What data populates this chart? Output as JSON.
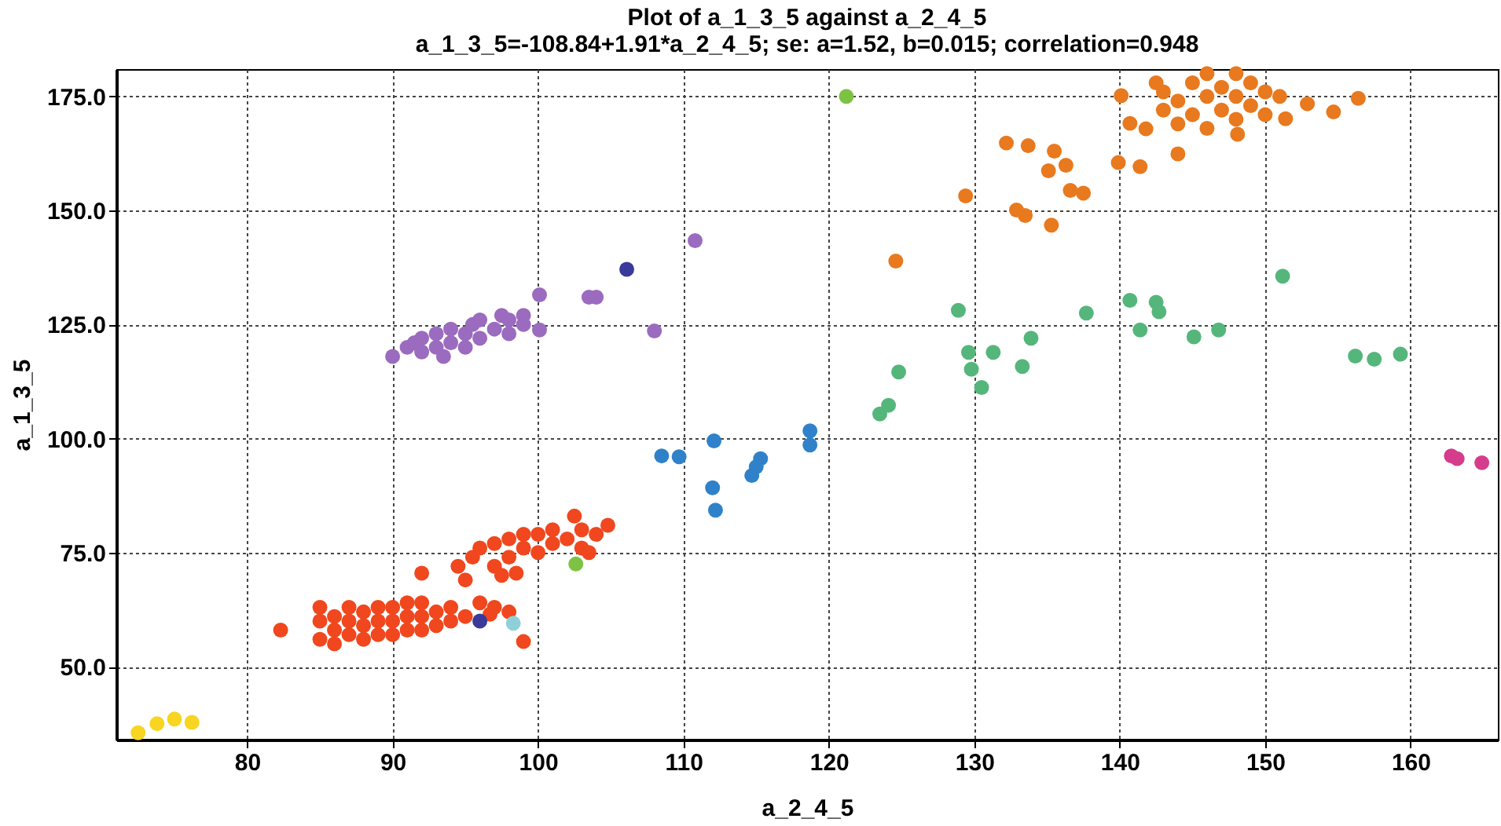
{
  "chart_data": {
    "type": "scatter",
    "title": "Plot of a_1_3_5 against a_2_4_5",
    "subtitle": "a_1_3_5=-108.84+1.91*a_2_4_5; se: a=1.52, b=0.015; correlation=0.948",
    "xlabel": "a_2_4_5",
    "ylabel": "a_1_3_5",
    "xlim": [
      71,
      166
    ],
    "xticks": [
      80,
      90,
      100,
      110,
      120,
      130,
      140,
      150,
      160
    ],
    "ylim": [
      34,
      181
    ],
    "yticks": [
      {
        "value": 50,
        "label": "50.0"
      },
      {
        "value": 75,
        "label": "75.0"
      },
      {
        "value": 100,
        "label": "100.0"
      },
      {
        "value": 125,
        "label": "125.0"
      },
      {
        "value": 150,
        "label": "150.0"
      },
      {
        "value": 175,
        "label": "175.0"
      }
    ],
    "grid": true,
    "marker": "circle",
    "legend": false,
    "series": [
      {
        "color": "#f7d520",
        "x": [
          72.5,
          73.8,
          75,
          76.2
        ],
        "values": [
          35.5,
          37.5,
          38.5,
          37.8
        ]
      },
      {
        "color": "#f0471e",
        "x": [
          85,
          85,
          85,
          86,
          86,
          86,
          87,
          87,
          87,
          88,
          88,
          88,
          89,
          89,
          89,
          90,
          90,
          90,
          91,
          91,
          91,
          92,
          92,
          92,
          93,
          93,
          94,
          94,
          95,
          96.7,
          96,
          97,
          98,
          99,
          82.3,
          92,
          95,
          94.5,
          95.5,
          96,
          97,
          97,
          98,
          98,
          99,
          99,
          100,
          100,
          101,
          101,
          102,
          102.5,
          103,
          103,
          104,
          104.8,
          97.5,
          98.5,
          103.5
        ],
        "values": [
          56,
          60,
          63,
          55,
          58,
          61,
          57,
          60,
          63,
          56,
          59,
          62,
          57,
          60,
          63,
          57,
          60,
          63,
          58,
          61,
          64,
          58,
          61,
          64,
          59,
          62,
          60,
          63,
          61,
          61.5,
          64,
          63,
          62,
          55.5,
          58,
          70.5,
          69,
          72,
          74,
          76,
          72,
          77,
          74,
          78,
          76,
          79,
          75,
          79,
          77,
          80,
          78,
          83,
          76,
          80,
          79,
          81,
          70,
          70.5,
          75
        ]
      },
      {
        "color": "#9b6bbf",
        "x": [
          90,
          91,
          91.5,
          92,
          92,
          93,
          93,
          93.5,
          94,
          94,
          95,
          95,
          95.5,
          96,
          96,
          97,
          97.5,
          98,
          98,
          99,
          99,
          100.1,
          100.1,
          103.5,
          104,
          108,
          110.8
        ],
        "values": [
          118,
          120,
          121,
          119,
          122,
          120,
          123,
          118,
          121,
          124,
          120,
          123,
          125,
          122,
          126,
          124,
          127,
          123,
          126,
          125,
          127,
          131.5,
          123.8,
          131,
          131,
          123.6,
          143.4
        ]
      },
      {
        "color": "#3a3a9a",
        "x": [
          96,
          106.1
        ],
        "values": [
          60,
          137.1
        ]
      },
      {
        "color": "#8fd0d8",
        "x": [
          98.3
        ],
        "values": [
          59.5
        ]
      },
      {
        "color": "#7dc242",
        "x": [
          102.6,
          121.2
        ],
        "values": [
          72.5,
          175
        ]
      },
      {
        "color": "#2f82c9",
        "x": [
          108.5,
          109.7,
          112.1,
          112,
          112.2,
          114.7,
          115.3,
          115,
          118.7,
          118.7
        ],
        "values": [
          96.2,
          96,
          99.5,
          89.2,
          84.3,
          91.9,
          95.6,
          93.8,
          101.7,
          98.6
        ]
      },
      {
        "color": "#55b67b",
        "x": [
          128.9,
          129.6,
          129.8,
          130.5,
          131.3,
          133.9,
          133.3,
          137.7,
          140.7,
          142.5,
          142.7,
          141.4,
          145.1,
          146.8,
          151.2,
          156.2,
          157.5,
          159.3,
          124.8,
          123.5,
          124.1
        ],
        "values": [
          128.1,
          118.9,
          115.2,
          111.2,
          118.9,
          122,
          115.8,
          127.5,
          130.3,
          129.9,
          127.8,
          123.8,
          122.3,
          123.8,
          135.6,
          118.1,
          117.4,
          118.5,
          114.6,
          105.4,
          107.3
        ]
      },
      {
        "color": "#e8791e",
        "x": [
          124.6,
          129.4,
          132.2,
          133.7,
          135.5,
          135.1,
          136.3,
          136.6,
          137.5,
          132.9,
          133.5,
          135.3,
          139.9,
          141.4,
          140.1,
          140.7,
          141.8,
          144,
          148.1,
          151.4,
          152.9,
          154.7,
          156.4,
          143,
          143,
          144,
          144,
          145,
          145,
          146,
          146,
          147,
          147,
          148,
          148,
          149,
          149,
          150,
          150,
          142.5,
          146,
          148,
          151
        ],
        "values": [
          138.9,
          153.2,
          164.8,
          164.2,
          163,
          158.7,
          159.9,
          154.4,
          153.8,
          150.1,
          148.9,
          146.8,
          160.5,
          159.6,
          175.2,
          169.1,
          167.9,
          162.4,
          166.7,
          170.1,
          173.4,
          171.6,
          174.6,
          172,
          176,
          169,
          174,
          171,
          178,
          168,
          175,
          172,
          177,
          170,
          175,
          173,
          178,
          176,
          171,
          178,
          180,
          180,
          175
        ]
      },
      {
        "color": "#d63c8c",
        "x": [
          162.8,
          163.2,
          164.9
        ],
        "values": [
          96.2,
          95.6,
          94.7
        ]
      }
    ]
  }
}
